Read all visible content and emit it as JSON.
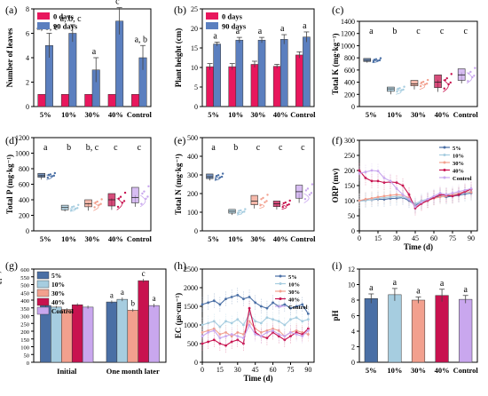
{
  "panels": [
    {
      "letter": "(a)",
      "key": "a"
    },
    {
      "letter": "(b)",
      "key": "b"
    },
    {
      "letter": "(c)",
      "key": "c"
    },
    {
      "letter": "(d)",
      "key": "d"
    },
    {
      "letter": "(e)",
      "key": "e"
    },
    {
      "letter": "(f)",
      "key": "f"
    },
    {
      "letter": "(g)",
      "key": "g"
    },
    {
      "letter": "(h)",
      "key": "h"
    },
    {
      "letter": "(i)",
      "key": "i"
    }
  ],
  "colors": {
    "day0": "#e8175d",
    "day90": "#5b7fbf",
    "s5": "#4a6fa5",
    "s10": "#a6cde0",
    "s30": "#f2a08e",
    "s40": "#c8124f",
    "control": "#c9a7ee"
  },
  "chart_data": [
    {
      "id": "a",
      "type": "bar",
      "ylabel": "Number of leaves",
      "ylim": [
        0,
        8
      ],
      "yticks": [
        0,
        2,
        4,
        6,
        8
      ],
      "categories": [
        "5%",
        "10%",
        "30%",
        "40%",
        "Control"
      ],
      "legend": [
        "0 days",
        "90 days"
      ],
      "series": [
        {
          "name": "0 days",
          "values": [
            1,
            1,
            1,
            1,
            1
          ],
          "err": [
            0,
            0,
            0,
            0,
            0
          ]
        },
        {
          "name": "90 days",
          "values": [
            5,
            6,
            3,
            7,
            4
          ],
          "err": [
            1,
            0.7,
            1,
            1.1,
            1
          ]
        }
      ],
      "letters": [
        "a, b, c",
        "a, b, c",
        "a",
        "c",
        "a, b"
      ]
    },
    {
      "id": "b",
      "type": "bar",
      "ylabel": "Plant height (cm)",
      "ylim": [
        0,
        25
      ],
      "yticks": [
        0,
        5,
        10,
        15,
        20,
        25
      ],
      "categories": [
        "5%",
        "10%",
        "30%",
        "40%",
        "Control"
      ],
      "legend": [
        "0 days",
        "90 days"
      ],
      "series": [
        {
          "name": "0 days",
          "values": [
            10.2,
            10.2,
            10.8,
            10.3,
            13.2
          ],
          "err": [
            0.8,
            0.8,
            0.8,
            0.5,
            0.8
          ]
        },
        {
          "name": "90 days",
          "values": [
            16,
            17,
            17,
            17.2,
            17.8
          ],
          "err": [
            0.5,
            0.7,
            0.7,
            1.2,
            1.3
          ]
        }
      ],
      "letters": [
        "a",
        "a",
        "a",
        "a",
        "a"
      ]
    },
    {
      "id": "c",
      "type": "box",
      "ylabel": "Total K (mg·kg⁻¹)",
      "ylim": [
        0,
        1400
      ],
      "yticks": [
        0,
        200,
        400,
        600,
        800,
        1000,
        1200,
        1400
      ],
      "categories": [
        "5%",
        "10%",
        "30%",
        "40%",
        "Control"
      ],
      "boxes": [
        [
          720,
          740,
          760,
          790,
          760
        ],
        [
          200,
          250,
          290,
          320,
          280
        ],
        [
          280,
          340,
          370,
          430,
          380
        ],
        [
          240,
          310,
          400,
          520,
          440
        ],
        [
          380,
          430,
          520,
          620,
          560
        ]
      ],
      "letters": [
        "a",
        "b",
        "c",
        "c",
        "c"
      ]
    },
    {
      "id": "d",
      "type": "box",
      "ylabel": "Total P (mg·kg⁻¹)",
      "ylim": [
        0,
        1200
      ],
      "yticks": [
        0,
        200,
        400,
        600,
        800,
        1000,
        1200
      ],
      "categories": [
        "5%",
        "10%",
        "30%",
        "40%",
        "Control"
      ],
      "boxes": [
        [
          660,
          690,
          710,
          740,
          720
        ],
        [
          250,
          270,
          300,
          330,
          290
        ],
        [
          260,
          310,
          350,
          400,
          360
        ],
        [
          270,
          320,
          400,
          480,
          420
        ],
        [
          310,
          360,
          430,
          560,
          460
        ]
      ],
      "letters": [
        "a",
        "b",
        "b, c",
        "c",
        "c"
      ]
    },
    {
      "id": "e",
      "type": "box",
      "ylabel": "Total N (mg·kg⁻¹)",
      "ylim": [
        0,
        500
      ],
      "yticks": [
        0,
        100,
        200,
        300,
        400,
        500
      ],
      "categories": [
        "5%",
        "10%",
        "30%",
        "40%",
        "Control"
      ],
      "boxes": [
        [
          270,
          280,
          290,
          305,
          290
        ],
        [
          85,
          95,
          105,
          115,
          100
        ],
        [
          120,
          140,
          160,
          190,
          145
        ],
        [
          115,
          130,
          145,
          160,
          140
        ],
        [
          150,
          175,
          210,
          245,
          200
        ]
      ],
      "letters": [
        "a",
        "b",
        "c",
        "c",
        "c"
      ]
    },
    {
      "id": "f",
      "type": "line",
      "ylabel": "ORP (mv)",
      "xlabel": "Time (d)",
      "xlim": [
        0,
        95
      ],
      "xticks": [
        0,
        15,
        30,
        45,
        60,
        75,
        90
      ],
      "ylim": [
        0,
        300
      ],
      "yticks": [
        0,
        50,
        100,
        150,
        200,
        250,
        300
      ],
      "x": [
        0,
        5,
        10,
        15,
        20,
        25,
        30,
        35,
        40,
        45,
        50,
        55,
        60,
        65,
        70,
        75,
        80,
        85,
        90
      ],
      "legend": [
        "5%",
        "10%",
        "30%",
        "40%",
        "Control"
      ],
      "series": [
        {
          "name": "5%",
          "values": [
            100,
            102,
            103,
            105,
            104,
            107,
            108,
            110,
            100,
            85,
            95,
            100,
            110,
            115,
            112,
            115,
            118,
            122,
            125
          ]
        },
        {
          "name": "10%",
          "values": [
            98,
            100,
            104,
            108,
            110,
            112,
            114,
            112,
            105,
            90,
            100,
            105,
            112,
            118,
            120,
            118,
            122,
            128,
            130
          ]
        },
        {
          "name": "30%",
          "values": [
            100,
            105,
            108,
            112,
            115,
            118,
            120,
            118,
            110,
            80,
            92,
            100,
            108,
            112,
            115,
            120,
            125,
            130,
            128
          ]
        },
        {
          "name": "40%",
          "values": [
            200,
            175,
            165,
            165,
            160,
            162,
            160,
            150,
            120,
            75,
            90,
            100,
            110,
            120,
            118,
            115,
            120,
            130,
            138
          ]
        },
        {
          "name": "Control",
          "values": [
            190,
            195,
            200,
            198,
            175,
            165,
            140,
            120,
            105,
            80,
            95,
            105,
            115,
            125,
            120,
            125,
            130,
            135,
            140
          ]
        }
      ]
    },
    {
      "id": "g",
      "type": "bar",
      "ylabel": "Concentrations of carbon dioxide (ppm)",
      "ylim": [
        0,
        600
      ],
      "yticks": [
        0,
        50,
        100,
        150,
        200,
        250,
        300,
        350,
        400,
        450,
        500,
        550,
        600
      ],
      "categories": [
        "Initial",
        "One month later"
      ],
      "legend": [
        "5%",
        "10%",
        "30%",
        "40%",
        "Control"
      ],
      "series": [
        {
          "name": "5%",
          "values": [
            365,
            388
          ],
          "err": [
            8,
            10
          ]
        },
        {
          "name": "10%",
          "values": [
            355,
            405
          ],
          "err": [
            8,
            12
          ]
        },
        {
          "name": "30%",
          "values": [
            340,
            335
          ],
          "err": [
            8,
            10
          ]
        },
        {
          "name": "40%",
          "values": [
            370,
            525
          ],
          "err": [
            10,
            12
          ]
        },
        {
          "name": "Control",
          "values": [
            355,
            365
          ],
          "err": [
            10,
            12
          ]
        }
      ],
      "letters": [
        "a",
        "a",
        "b",
        "c",
        "a"
      ]
    },
    {
      "id": "h",
      "type": "line",
      "ylabel": "EC (μs·cm⁻¹)",
      "xlabel": "Time (d)",
      "xlim": [
        0,
        95
      ],
      "xticks": [
        0,
        15,
        30,
        45,
        60,
        75,
        90
      ],
      "ylim": [
        0,
        2500
      ],
      "yticks": [
        0,
        500,
        1000,
        1500,
        2000,
        2500
      ],
      "x": [
        0,
        5,
        10,
        15,
        20,
        25,
        30,
        35,
        40,
        45,
        50,
        55,
        60,
        65,
        70,
        75,
        80,
        85,
        90
      ],
      "legend": [
        "5%",
        "10%",
        "30%",
        "40%",
        "Control"
      ],
      "series": [
        {
          "name": "5%",
          "values": [
            1550,
            1600,
            1650,
            1550,
            1700,
            1750,
            1800,
            1700,
            1750,
            1600,
            1500,
            1450,
            1600,
            1500,
            1550,
            1450,
            1500,
            1550,
            1300
          ]
        },
        {
          "name": "10%",
          "values": [
            1000,
            1050,
            1100,
            950,
            1100,
            1050,
            1150,
            1000,
            1300,
            1100,
            1050,
            1200,
            1150,
            1100,
            1000,
            1150,
            1200,
            1100,
            1150
          ]
        },
        {
          "name": "30%",
          "values": [
            800,
            850,
            900,
            750,
            800,
            700,
            800,
            750,
            1100,
            900,
            800,
            850,
            900,
            850,
            700,
            800,
            850,
            800,
            750
          ]
        },
        {
          "name": "40%",
          "values": [
            500,
            550,
            600,
            500,
            450,
            550,
            600,
            500,
            1450,
            800,
            700,
            650,
            800,
            700,
            600,
            700,
            800,
            750,
            900
          ]
        },
        {
          "name": "Control",
          "values": [
            700,
            800,
            850,
            650,
            700,
            750,
            700,
            650,
            1000,
            750,
            700,
            800,
            850,
            750,
            700,
            800,
            750,
            700,
            850
          ]
        }
      ]
    },
    {
      "id": "i",
      "type": "bar",
      "ylabel": "pH",
      "ylim": [
        0,
        12
      ],
      "yticks": [
        0,
        2,
        4,
        6,
        8,
        10,
        12
      ],
      "categories": [
        "5%",
        "10%",
        "30%",
        "40%",
        "Control"
      ],
      "series": [
        {
          "name": "",
          "values": [
            8.2,
            8.7,
            8.0,
            8.6,
            8.1
          ],
          "err": [
            0.6,
            0.8,
            0.4,
            0.8,
            0.5
          ]
        }
      ],
      "letters": [
        "a",
        "a",
        "a",
        "a",
        "a"
      ]
    }
  ]
}
